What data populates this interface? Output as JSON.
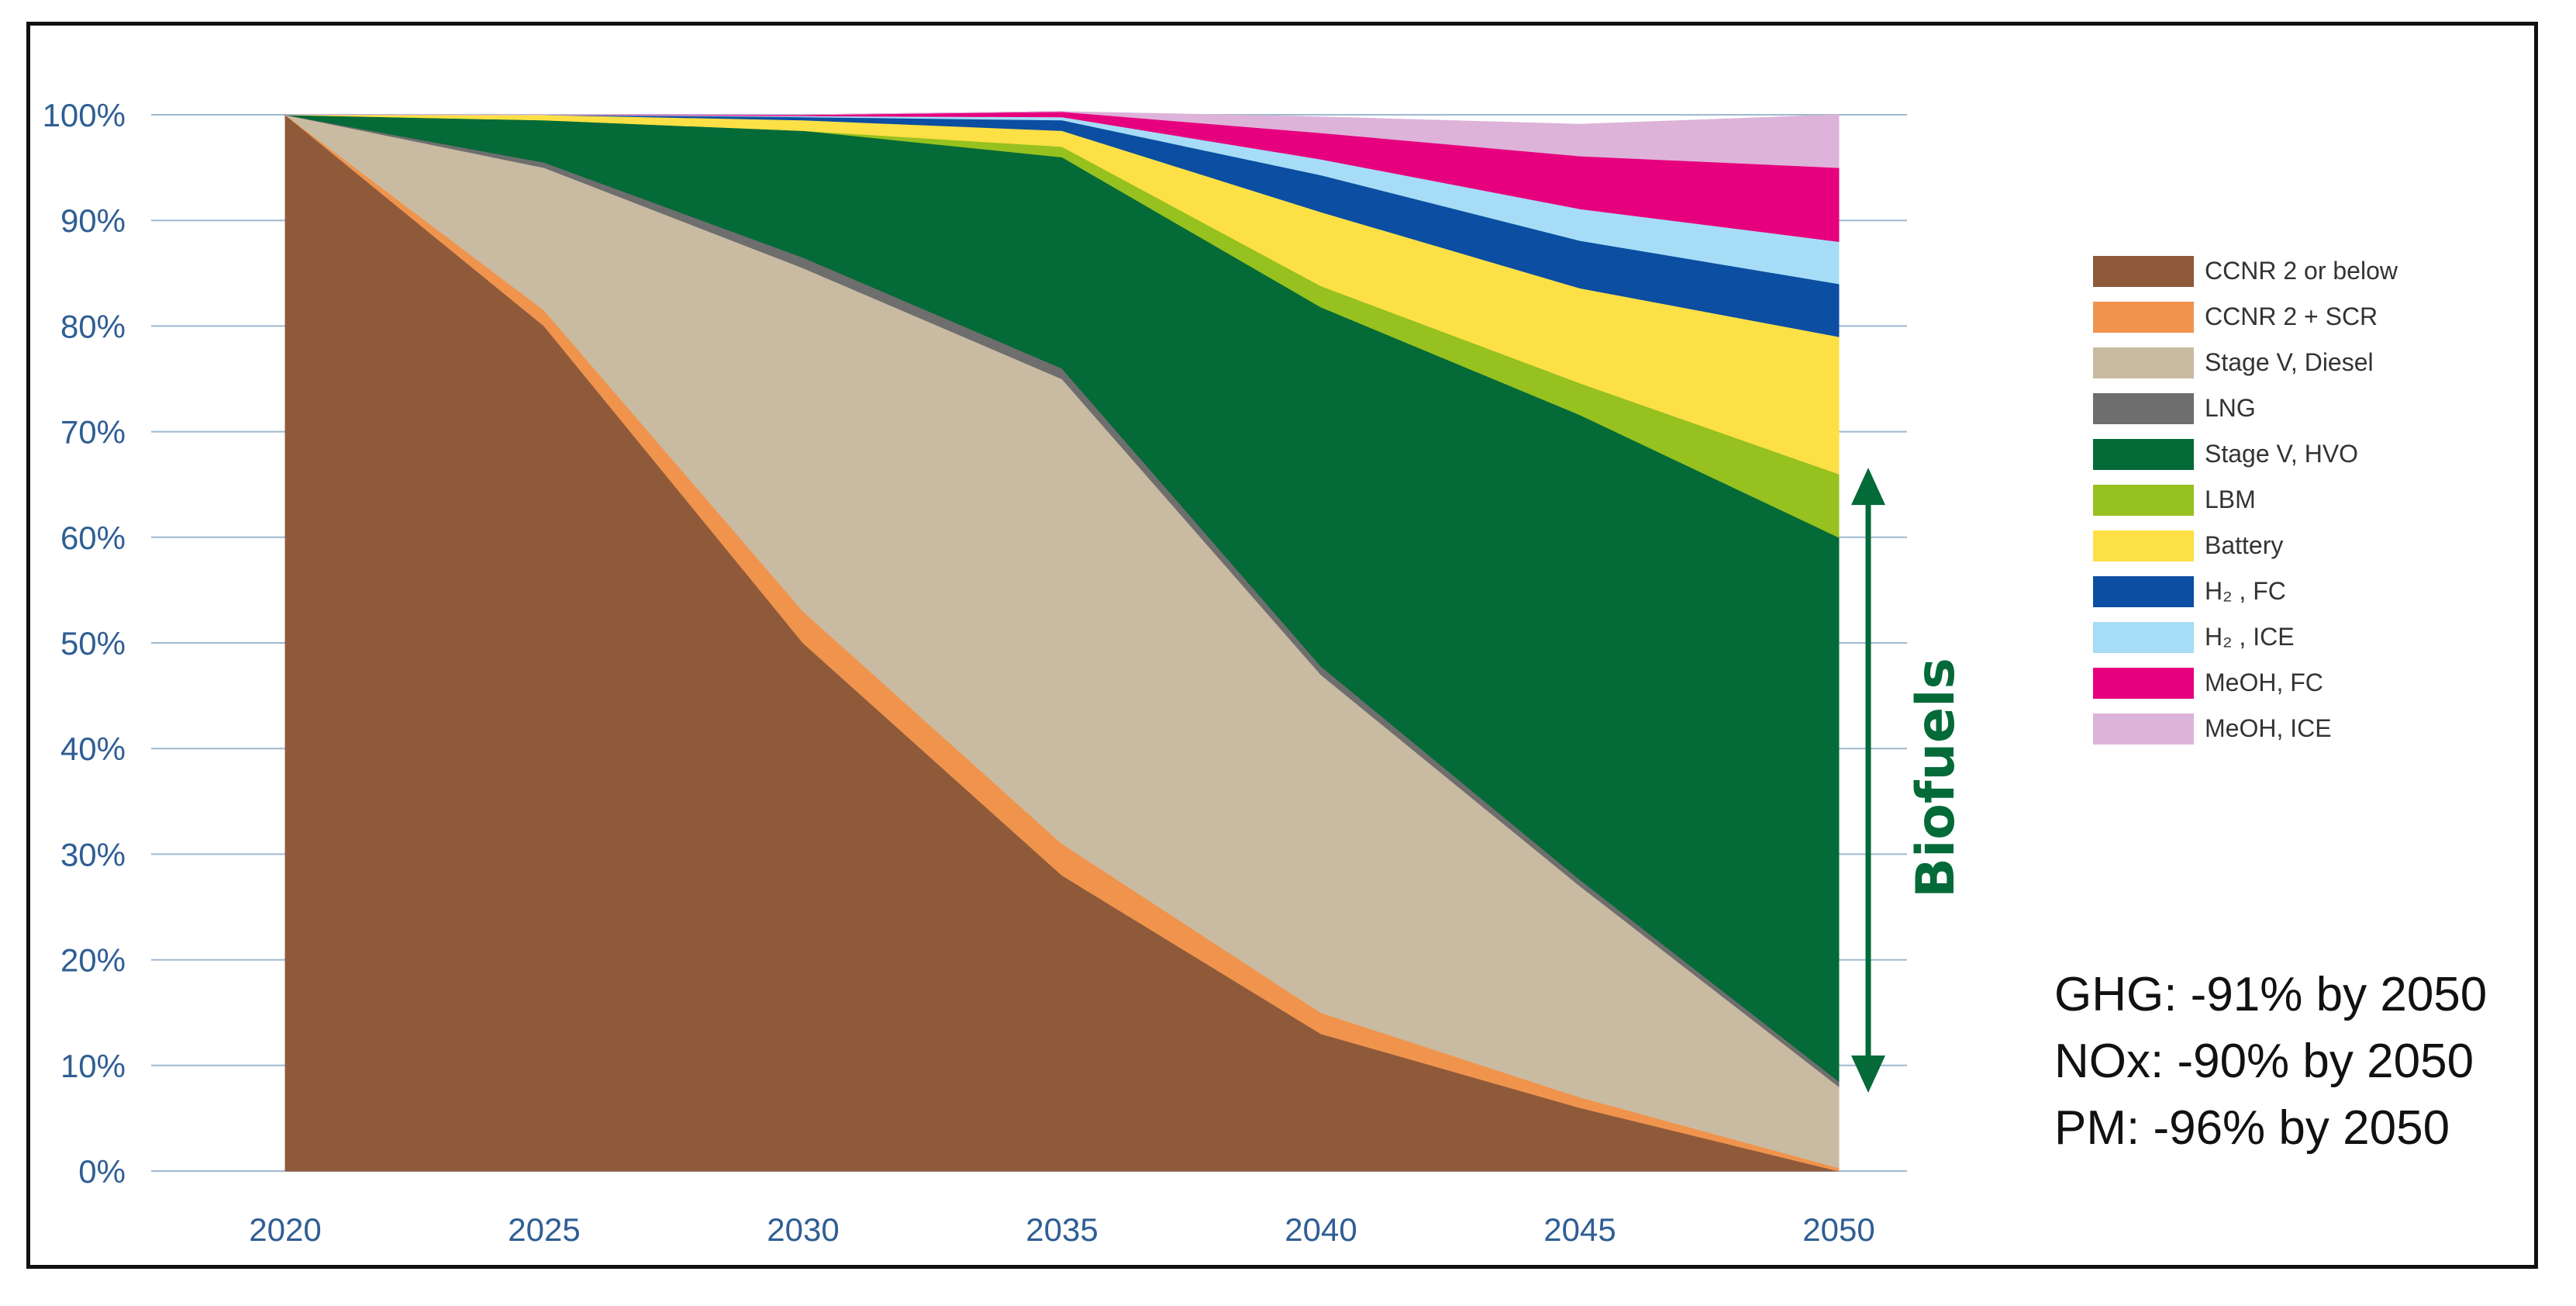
{
  "chart_data": {
    "type": "area",
    "stacked": true,
    "x": [
      "2020",
      "2025",
      "2030",
      "2035",
      "2040",
      "2045",
      "2050"
    ],
    "ylim": [
      0,
      100
    ],
    "yticks": [
      "0%",
      "10%",
      "20%",
      "30%",
      "40%",
      "50%",
      "60%",
      "70%",
      "80%",
      "90%",
      "100%"
    ],
    "series": [
      {
        "name": "CCNR 2 or below",
        "color": "#8F5A3A",
        "values": [
          100,
          80,
          50,
          28,
          13,
          6,
          0
        ]
      },
      {
        "name": "CCNR 2 + SCR",
        "color": "#F0944D",
        "values": [
          0,
          1.5,
          3,
          3,
          2,
          1,
          0.3
        ]
      },
      {
        "name": "Stage V, Diesel",
        "color": "#C9BBA2",
        "values": [
          0,
          13.5,
          32.5,
          44,
          32,
          20,
          7.7
        ]
      },
      {
        "name": "LNG",
        "color": "#6E6E6E",
        "values": [
          0,
          0.5,
          1,
          1,
          0.8,
          0.6,
          0.5
        ]
      },
      {
        "name": "Stage V, HVO",
        "color": "#046A38",
        "values": [
          0,
          4,
          12,
          20,
          34,
          44,
          51.5
        ]
      },
      {
        "name": "LBM",
        "color": "#96C11F",
        "values": [
          0,
          0,
          0,
          1,
          2,
          3,
          6
        ]
      },
      {
        "name": "Battery",
        "color": "#FDE046",
        "values": [
          0,
          0.5,
          1,
          1.5,
          7,
          9,
          13
        ]
      },
      {
        "name": "H₂ , FC",
        "color": "#0B4EA2",
        "values": [
          0,
          0,
          0.3,
          1,
          3.5,
          4.5,
          5
        ]
      },
      {
        "name": "H₂ , ICE",
        "color": "#A6DCF5",
        "values": [
          0,
          0,
          0.1,
          0.3,
          1.5,
          3,
          4
        ]
      },
      {
        "name": "MeOH, FC",
        "color": "#E6007E",
        "values": [
          0,
          0,
          0.1,
          0.5,
          2.5,
          5,
          7
        ]
      },
      {
        "name": "MeOH, ICE",
        "color": "#DDB3D9",
        "values": [
          0,
          0,
          0,
          0,
          1.5,
          3,
          5
        ]
      }
    ],
    "annotation": "Biofuels",
    "annotation_range": [
      8,
      66
    ]
  },
  "notes": [
    "GHG: -91% by 2050",
    "NOx: -90% by 2050",
    "PM: -96% by 2050"
  ],
  "colors": {
    "axis_text": "#2F5E94",
    "gridline": "#9FB8CF",
    "biofuels": "#046A38"
  }
}
